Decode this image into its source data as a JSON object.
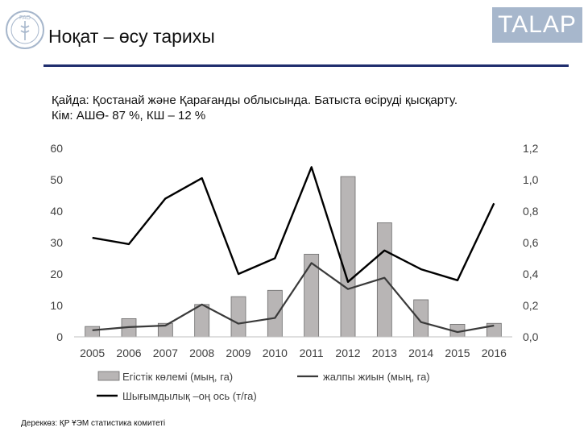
{
  "header": {
    "title": "Ноқат – өсу тарихы",
    "brand": "TALAP",
    "logo_text": "FAO"
  },
  "info": {
    "where": "Қайда:  Қостанай және Қарағанды облысында. Батыста өсіруді қысқарту.",
    "who": "Кім: АШӨ- 87 %, КШ – 12 %"
  },
  "source": "Дереккөз: ҚР ҰЭМ статистика комитеті",
  "colors": {
    "bar_fill": "#b8b5b5",
    "bar_stroke": "#6b6b6b",
    "line_dark": "#3a3a3a",
    "line_black": "#000000",
    "brand_bg": "#a7b7cc",
    "rule": "#1f2e6e"
  },
  "chart_data": {
    "type": "bar",
    "categories": [
      "2005",
      "2006",
      "2007",
      "2008",
      "2009",
      "2010",
      "2011",
      "2012",
      "2013",
      "2014",
      "2015",
      "2016"
    ],
    "y_left": {
      "ylim": [
        0,
        60
      ],
      "ticks": [
        "0",
        "10",
        "20",
        "30",
        "40",
        "50",
        "60"
      ]
    },
    "y_right": {
      "ylim": [
        0,
        1.2
      ],
      "ticks": [
        "0,0",
        "0,2",
        "0,4",
        "0,6",
        "0,8",
        "1,0",
        "1,2"
      ]
    },
    "series": [
      {
        "name": "Егістік көлемі (мың, га)",
        "type": "bar",
        "axis": "left",
        "values": [
          3.3,
          5.8,
          4.3,
          10.3,
          12.8,
          14.8,
          26.3,
          51,
          36.3,
          11.8,
          4,
          4.3
        ]
      },
      {
        "name": "жалпы жиын (мың, га)",
        "type": "line",
        "axis": "left",
        "values": [
          2.1,
          3.1,
          3.6,
          10.3,
          4.2,
          6,
          23.5,
          15.2,
          18.8,
          4.7,
          1.5,
          3.6
        ]
      },
      {
        "name": "Шығымдылық –оң ось (т/га)",
        "type": "line",
        "axis": "right",
        "values": [
          0.63,
          0.59,
          0.88,
          1.01,
          0.4,
          0.5,
          1.08,
          0.35,
          0.55,
          0.43,
          0.36,
          0.85
        ]
      }
    ],
    "legend": "bottom",
    "grid": false
  }
}
